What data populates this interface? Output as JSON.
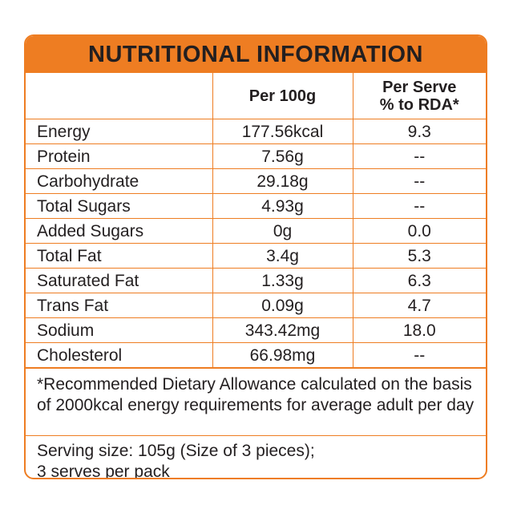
{
  "title": "NUTRITIONAL INFORMATION",
  "columns": {
    "nutrient": "",
    "per_100g": "Per 100g",
    "per_serve_line1": "Per Serve",
    "per_serve_line2": "% to RDA*"
  },
  "rows": [
    {
      "nutrient": "Energy",
      "per_100g": "177.56kcal",
      "per_serve_rda": "9.3"
    },
    {
      "nutrient": "Protein",
      "per_100g": "7.56g",
      "per_serve_rda": "--"
    },
    {
      "nutrient": "Carbohydrate",
      "per_100g": "29.18g",
      "per_serve_rda": "--"
    },
    {
      "nutrient": "Total Sugars",
      "per_100g": "4.93g",
      "per_serve_rda": "--"
    },
    {
      "nutrient": "Added Sugars",
      "per_100g": "0g",
      "per_serve_rda": "0.0"
    },
    {
      "nutrient": "Total Fat",
      "per_100g": "3.4g",
      "per_serve_rda": "5.3"
    },
    {
      "nutrient": "Saturated Fat",
      "per_100g": "1.33g",
      "per_serve_rda": "6.3"
    },
    {
      "nutrient": "Trans Fat",
      "per_100g": "0.09g",
      "per_serve_rda": "4.7"
    },
    {
      "nutrient": "Sodium",
      "per_100g": "343.42mg",
      "per_serve_rda": "18.0"
    },
    {
      "nutrient": "Cholesterol",
      "per_100g": "66.98mg",
      "per_serve_rda": "--"
    }
  ],
  "footnote": "*Recommended Dietary Allowance calculated on the basis of 2000kcal energy requirements for average adult per day",
  "serving": {
    "line1": "Serving size: 105g (Size of 3 pieces);",
    "line2": "3 serves per pack"
  },
  "colors": {
    "accent": "#ee7d22",
    "text": "#231f20",
    "background": "#ffffff"
  }
}
